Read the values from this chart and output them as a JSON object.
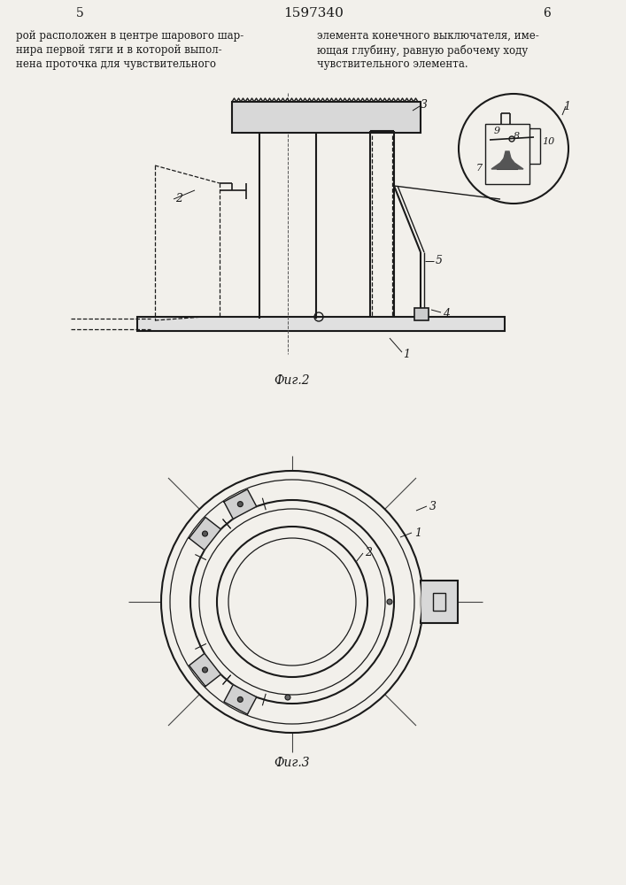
{
  "bg_color": "#f2f0eb",
  "line_color": "#1a1a1a",
  "title_text": "1597340",
  "page_left": "5",
  "page_right": "6",
  "text_left": [
    "рой расположен в центре шарового шар-",
    "нира первой тяги и в которой выпол-",
    "нена проточка для чувствительного"
  ],
  "text_right": [
    "элемента конечного выключателя, име-",
    "ющая глубину, равную рабочему ходу",
    "чувствительного элемента."
  ],
  "fig2_label": "Фиг.2",
  "fig3_label": "Фиг.3"
}
